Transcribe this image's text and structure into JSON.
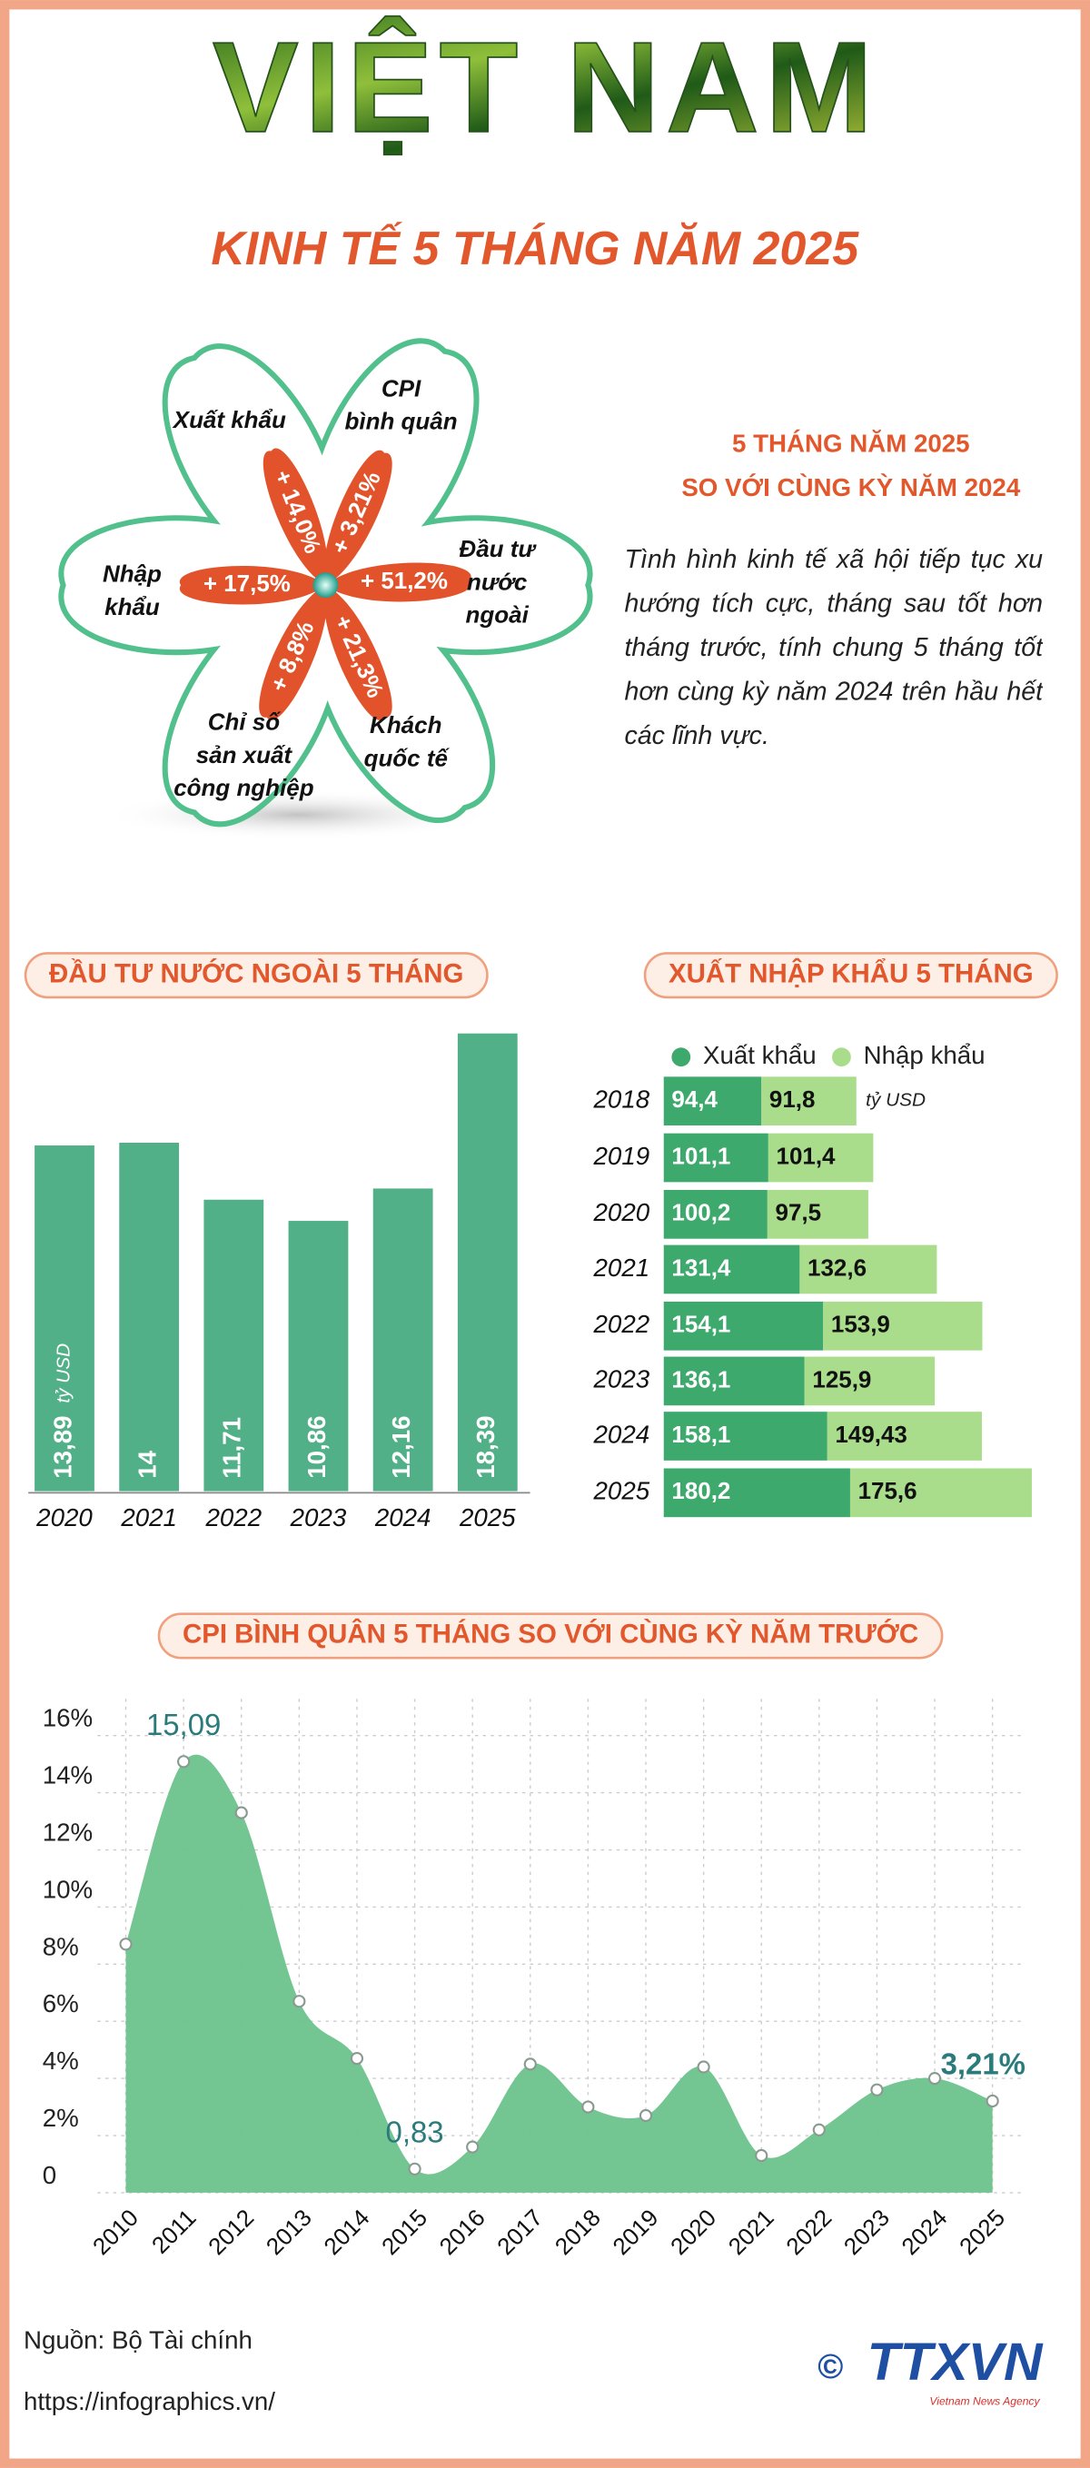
{
  "header": {
    "title": "VIỆT NAM",
    "subtitle": "KINH TẾ 5 THÁNG NĂM 2025"
  },
  "flower": [
    {
      "label": [
        "Xuất khẩu"
      ],
      "value": "+ 14,0%"
    },
    {
      "label": [
        "CPI",
        "bình quân"
      ],
      "value": "+ 3,21%"
    },
    {
      "label": [
        "Đầu tư",
        "nước",
        "ngoài"
      ],
      "value": "+ 51,2%"
    },
    {
      "label": [
        "Khách",
        "quốc tế"
      ],
      "value": "+ 21,3%"
    },
    {
      "label": [
        "Chỉ số",
        "sản xuất",
        "công nghiệp"
      ],
      "value": "+ 8,8%"
    },
    {
      "label": [
        "Nhập",
        "khẩu"
      ],
      "value": "+ 17,5%"
    }
  ],
  "summary": {
    "heading": [
      "5 THÁNG NĂM 2025",
      "SO VỚI CÙNG KỲ NĂM 2024"
    ],
    "text": "Tình hình kinh tế xã hội tiếp tục xu hướng tích cực, tháng sau tốt hơn tháng trước, tính chung 5 tháng tốt hơn cùng kỳ năm 2024 trên hầu hết các lĩnh vực."
  },
  "chart_data": [
    {
      "type": "bar",
      "title": "ĐẦU TƯ NƯỚC NGOÀI 5 THÁNG",
      "unit": "tỷ USD",
      "color": "#52b088",
      "categories": [
        "2020",
        "2021",
        "2022",
        "2023",
        "2024",
        "2025"
      ],
      "values": [
        13.89,
        14,
        11.71,
        10.86,
        12.16,
        18.39
      ],
      "value_labels": [
        "13,89",
        "14",
        "11,71",
        "10,86",
        "12,16",
        "18,39"
      ]
    },
    {
      "type": "hbar",
      "title": "XUẤT NHẬP KHẨU 5 THÁNG",
      "unit": "tỷ USD",
      "stacked": true,
      "categories": [
        "2018",
        "2019",
        "2020",
        "2021",
        "2022",
        "2023",
        "2024",
        "2025"
      ],
      "series": [
        {
          "name": "Xuất khẩu",
          "color": "#3ea96c",
          "values": [
            94.4,
            101.1,
            100.2,
            131.4,
            154.1,
            136.1,
            158.1,
            180.2
          ],
          "value_labels": [
            "94,4",
            "101,1",
            "100,2",
            "131,4",
            "154,1",
            "136,1",
            "158,1",
            "180,2"
          ]
        },
        {
          "name": "Nhập khẩu",
          "color": "#a9dc8b",
          "values": [
            91.8,
            101.4,
            97.5,
            132.6,
            153.9,
            125.9,
            149.43,
            175.6
          ],
          "value_labels": [
            "91,8",
            "101,4",
            "97,5",
            "132,6",
            "153,9",
            "125,9",
            "149,43",
            "175,6"
          ]
        }
      ]
    },
    {
      "type": "area",
      "title": "CPI BÌNH QUÂN 5 THÁNG SO VỚI CÙNG KỲ NĂM TRƯỚC",
      "color": "#6cc38c",
      "grid": true,
      "categories": [
        "2010",
        "2011",
        "2012",
        "2013",
        "2014",
        "2015",
        "2016",
        "2017",
        "2018",
        "2019",
        "2020",
        "2021",
        "2022",
        "2023",
        "2024",
        "2025"
      ],
      "values": [
        8.7,
        15.09,
        13.3,
        6.7,
        4.7,
        0.83,
        1.6,
        4.5,
        3.0,
        2.7,
        4.4,
        1.3,
        2.2,
        3.6,
        4.0,
        3.21
      ],
      "value_labels": [
        null,
        "15,09",
        null,
        null,
        null,
        "0,83",
        null,
        null,
        null,
        null,
        null,
        null,
        null,
        null,
        null,
        "3,21%"
      ],
      "ylim": [
        0,
        16
      ],
      "yticks": [
        0,
        {
          "value": 2,
          "label": "2%"
        },
        {
          "value": 4,
          "label": "4%"
        },
        {
          "value": 6,
          "label": "6%"
        },
        {
          "value": 8,
          "label": "8%"
        },
        {
          "value": 10,
          "label": "10%"
        },
        {
          "value": 12,
          "label": "12%"
        },
        {
          "value": 14,
          "label": "14%"
        },
        {
          "value": 16,
          "label": "16%"
        }
      ]
    }
  ],
  "footer": {
    "source": "Nguồn: Bộ Tài chính",
    "url": "https://infographics.vn/",
    "copyright": "©",
    "logo": "TTXVN",
    "logo_sub": "Vietnam News Agency"
  }
}
